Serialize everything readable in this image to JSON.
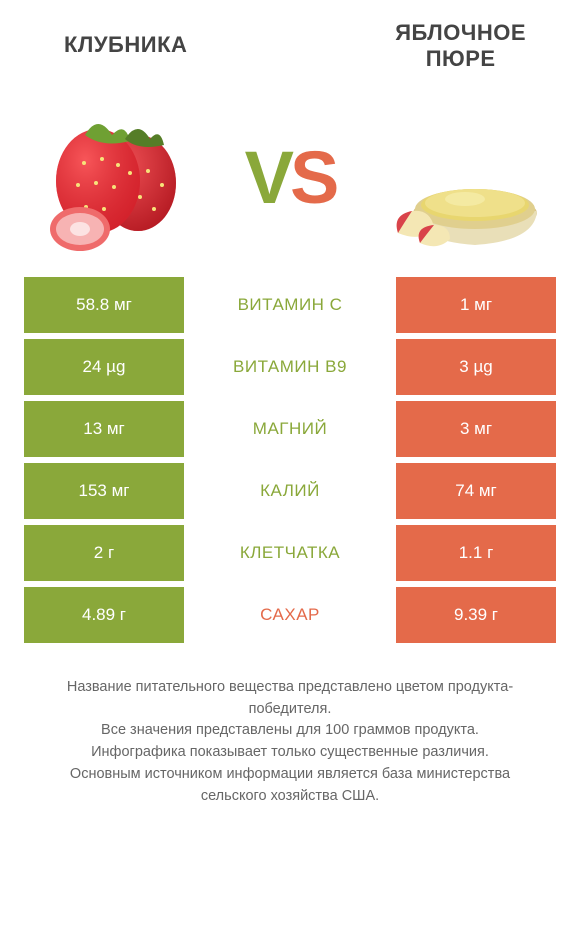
{
  "colors": {
    "green": "#8aa83a",
    "orange": "#e46a4a",
    "mid_text_green": "#8aa83a",
    "mid_text_orange": "#e46a4a",
    "title": "#444444",
    "footer": "#666666",
    "background": "#ffffff"
  },
  "header": {
    "left_title": "Клубника",
    "right_title_line1": "Яблочное",
    "right_title_line2": "пюре",
    "vs_v": "V",
    "vs_s": "S"
  },
  "table": {
    "rows": [
      {
        "left": "58.8 мг",
        "mid": "Витамин C",
        "right": "1 мг",
        "winner": "left"
      },
      {
        "left": "24 µg",
        "mid": "Витамин B9",
        "right": "3 µg",
        "winner": "left"
      },
      {
        "left": "13 мг",
        "mid": "Магний",
        "right": "3 мг",
        "winner": "left"
      },
      {
        "left": "153 мг",
        "mid": "Калий",
        "right": "74 мг",
        "winner": "left"
      },
      {
        "left": "2 г",
        "mid": "Клетчатка",
        "right": "1.1 г",
        "winner": "left"
      },
      {
        "left": "4.89 г",
        "mid": "Сахар",
        "right": "9.39 г",
        "winner": "right"
      }
    ]
  },
  "footer": {
    "line1": "Название питательного вещества представлено цветом продукта-победителя.",
    "line2": "Все значения представлены для 100 граммов продукта.",
    "line3": "Инфографика показывает только существенные различия.",
    "line4": "Основным источником информации является база министерства сельского хозяйства США."
  }
}
